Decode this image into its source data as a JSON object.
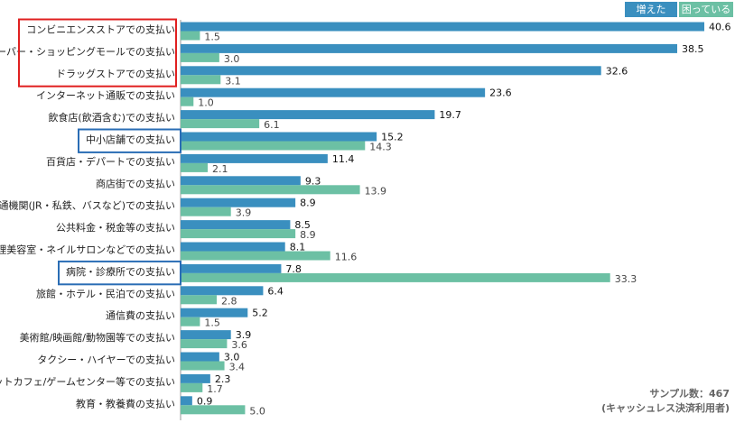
{
  "chart_data": {
    "type": "bar",
    "orientation": "horizontal",
    "categories": [
      "コンビニエンスストアでの支払い",
      "スーパー・ショッピングモールでの支払い",
      "ドラッグストアでの支払い",
      "インターネット通販での支払い",
      "飲食店(飲酒含む)での支払い",
      "中小店舗での支払い",
      "百貨店・デパートでの支払い",
      "商店街での支払い",
      "交通機関(JR・私鉄、バスなど)での支払い",
      "公共料金・税金等の支払い",
      "理美容室・ネイルサロンなどでの支払い",
      "病院・診療所での支払い",
      "旅館・ホテル・民泊での支払い",
      "通信費の支払い",
      "美術館/映画館/動物園等での支払い",
      "タクシー・ハイヤーでの支払い",
      "ネットカフェ/ゲームセンター等での支払い",
      "教育・教養費の支払い"
    ],
    "series": [
      {
        "name": "増えた",
        "color": "#3a8fbf",
        "values": [
          40.6,
          38.5,
          32.6,
          23.6,
          19.7,
          15.2,
          11.4,
          9.3,
          8.9,
          8.5,
          8.1,
          7.8,
          6.4,
          5.2,
          3.9,
          3.0,
          2.3,
          0.9
        ]
      },
      {
        "name": "困っている",
        "color": "#6cc0a4",
        "values": [
          1.5,
          3.0,
          3.1,
          1.0,
          6.1,
          14.3,
          2.1,
          13.9,
          3.9,
          8.9,
          11.6,
          33.3,
          2.8,
          1.5,
          3.6,
          3.4,
          1.7,
          5.0
        ]
      }
    ],
    "value_labels": {
      "increased": [
        "40.6",
        "38.5",
        "32.6",
        "23.6",
        "19.7",
        "15.2",
        "11.4",
        "9.3",
        "8.9",
        "8.5",
        "8.1",
        "7.8",
        "6.4",
        "5.2",
        "3.9",
        "3.0",
        "2.3",
        "0.9"
      ],
      "troubled": [
        "1.5",
        "3.0",
        "3.1",
        "1.0",
        "6.1",
        "14.3",
        "2.1",
        "13.9",
        "3.9",
        "8.9",
        "11.6",
        "33.3",
        "2.8",
        "1.5",
        "3.6",
        "3.4",
        "1.7",
        "5.0"
      ]
    },
    "xlim": [
      0,
      40.6
    ],
    "highlights": [
      {
        "categories": [
          0,
          1,
          2
        ],
        "color": "#e02020"
      },
      {
        "categories": [
          5
        ],
        "color": "#2a6db5"
      },
      {
        "categories": [
          11
        ],
        "color": "#2a6db5"
      }
    ],
    "legend_position": "top-right",
    "note": [
      "サンプル数：467",
      "(キャッシュレス決済利用者)"
    ]
  }
}
